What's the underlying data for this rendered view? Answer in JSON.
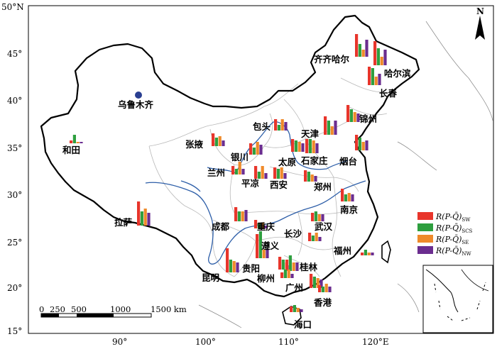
{
  "colors": {
    "sw": "#e8352b",
    "scs": "#2e9f3f",
    "se": "#ef8a2a",
    "nw": "#6b2d8f",
    "river": "#2d5ea8",
    "border": "#000000",
    "province": "#b9b9b9",
    "urumqi_dot": "#2a3f91"
  },
  "axes": {
    "lat_labels": [
      "50°N",
      "45°",
      "40°",
      "35°",
      "30°",
      "25°",
      "20°",
      "15°"
    ],
    "lon_labels": [
      "90°",
      "100°",
      "110°",
      "120°E"
    ]
  },
  "north_arrow": {
    "label": "N"
  },
  "scale_bar": {
    "labels": [
      "0",
      "250",
      "500",
      "1000",
      "1500 km"
    ]
  },
  "legend": {
    "items": [
      {
        "key": "sw",
        "main": "R(P-Q̄)",
        "sub": "SW"
      },
      {
        "key": "scs",
        "main": "R(P-Q̄)",
        "sub": "SCS"
      },
      {
        "key": "se",
        "main": "R(P-Q̄)",
        "sub": "SE"
      },
      {
        "key": "nw",
        "main": "R(P-Q̄)",
        "sub": "NW"
      }
    ]
  },
  "urumqi": {
    "name": "乌鲁木齐"
  },
  "stations": [
    {
      "name": "齐齐哈尔",
      "values": [
        0.8,
        0.45,
        0.25,
        0.6
      ]
    },
    {
      "name": "哈尔滨",
      "values": [
        0.85,
        0.6,
        0.3,
        0.55
      ]
    },
    {
      "name": "长春",
      "values": [
        0.65,
        0.6,
        0.3,
        0.4
      ]
    },
    {
      "name": "锦州",
      "values": [
        0.6,
        0.45,
        0.35,
        0.3
      ]
    },
    {
      "name": "和田",
      "values": [
        0.1,
        0.3,
        0.05,
        0.05
      ]
    },
    {
      "name": "包头",
      "values": [
        0.4,
        0.2,
        0.4,
        0.3
      ]
    },
    {
      "name": "天津",
      "values": [
        0.65,
        0.5,
        0.3,
        0.5
      ]
    },
    {
      "name": "张掖",
      "values": [
        0.45,
        0.3,
        0.35,
        0.2
      ]
    },
    {
      "name": "银川",
      "values": [
        0.4,
        0.25,
        0.45,
        0.35
      ]
    },
    {
      "name": "太原",
      "values": [
        0.45,
        0.4,
        0.35,
        0.3
      ]
    },
    {
      "name": "石家庄",
      "values": [
        0.5,
        0.5,
        0.45,
        0.35
      ]
    },
    {
      "name": "烟台",
      "values": [
        0.55,
        0.45,
        0.3,
        0.35
      ]
    },
    {
      "name": "兰州",
      "values": [
        0.3,
        0.2,
        0.45,
        0.2
      ]
    },
    {
      "name": "平凉",
      "values": [
        0.45,
        0.25,
        0.45,
        0.2
      ]
    },
    {
      "name": "西安",
      "values": [
        0.4,
        0.35,
        0.4,
        0.2
      ]
    },
    {
      "name": "郑州",
      "values": [
        0.4,
        0.35,
        0.25,
        0.2
      ]
    },
    {
      "name": "南京",
      "values": [
        0.45,
        0.25,
        0.3,
        0.25
      ]
    },
    {
      "name": "拉萨",
      "values": [
        0.85,
        0.5,
        0.6,
        0.45
      ]
    },
    {
      "name": "成都",
      "values": [
        0.5,
        0.35,
        0.35,
        0.4
      ]
    },
    {
      "name": "重庆",
      "values": [
        0.3,
        0.2,
        0.2,
        0.1
      ]
    },
    {
      "name": "武汉",
      "values": [
        0.3,
        0.35,
        0.25,
        0.25
      ]
    },
    {
      "name": "长沙",
      "values": [
        0.3,
        0.2,
        0.3,
        0.15
      ]
    },
    {
      "name": "遵义",
      "values": [
        0.85,
        0.95,
        0.3,
        0.3
      ]
    },
    {
      "name": "福州",
      "values": [
        0.1,
        0.2,
        0.1,
        0.1
      ]
    },
    {
      "name": "昆明",
      "values": [
        0.85,
        0.45,
        0.4,
        0.35
      ]
    },
    {
      "name": "贵阳",
      "values": [
        0.45,
        0.35,
        0.25,
        0.15
      ]
    },
    {
      "name": "桂林",
      "values": [
        0.4,
        0.55,
        0.3,
        0.3
      ]
    },
    {
      "name": "柳州",
      "values": [
        0.2,
        0.3,
        0.3,
        0.15
      ]
    },
    {
      "name": "广州",
      "values": [
        0.5,
        0.4,
        0.35,
        0.3
      ]
    },
    {
      "name": "香港",
      "values": [
        0.25,
        0.2,
        0.3,
        0.2
      ]
    },
    {
      "name": "海口",
      "values": [
        0.2,
        0.25,
        0.15,
        0.1
      ]
    }
  ]
}
